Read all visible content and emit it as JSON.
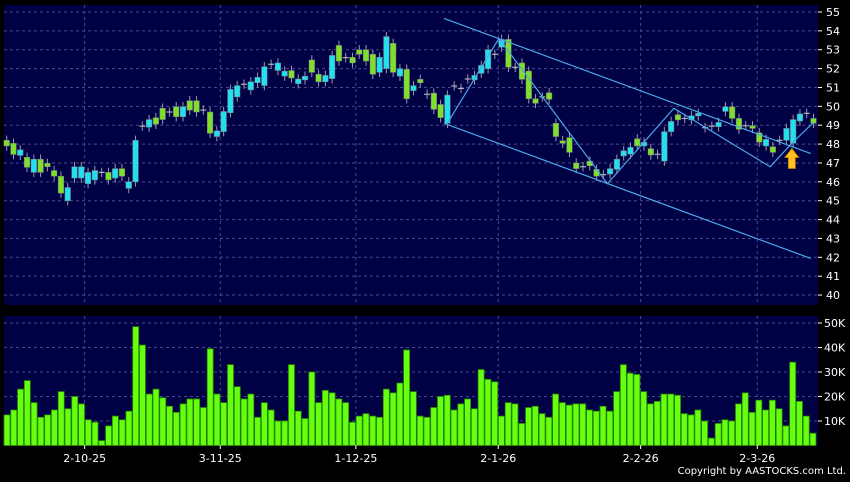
{
  "chart_data": [
    {
      "type": "candlestick",
      "ylim": [
        40,
        55
      ],
      "yticks": [
        40,
        41,
        42,
        43,
        44,
        45,
        46,
        47,
        48,
        49,
        50,
        51,
        52,
        53,
        54,
        55
      ],
      "grid": true,
      "colors": {
        "up": "#22e0ee",
        "down": "#7ee02a",
        "panel": "#000045",
        "trendline": "#4aa8e8",
        "arrow": "#ffc020"
      },
      "open": [
        48.2,
        48.04,
        47.4,
        47.3,
        46.5,
        47.2,
        46.98,
        46.6,
        46.3,
        45.0,
        46.2,
        46.2,
        45.9,
        46.1,
        46.5,
        46.5,
        46.2,
        46.7,
        45.65,
        46.0,
        48.95,
        48.9,
        49.4,
        49.9,
        49.7,
        49.98,
        49.45,
        50.3,
        50.3,
        49.8,
        49.7,
        48.4,
        48.66,
        49.66,
        50.5,
        51.17,
        50.87,
        51.25,
        51.1,
        52.23,
        51.9,
        51.6,
        51.9,
        51.2,
        51.4,
        52.46,
        51.7,
        51.3,
        51.47,
        53.23,
        52.58,
        52.6,
        53.0,
        53.0,
        52.76,
        51.8,
        52.0,
        53.34,
        51.6,
        51.96,
        50.83,
        51.43,
        50.64,
        50.7,
        50.1,
        49.1,
        51.08,
        50.95,
        51.45,
        51.4,
        51.75,
        52.0,
        52.76,
        53.13,
        53.55,
        52.07,
        52.3,
        51.87,
        50.4,
        50.5,
        50.72,
        49.1,
        48.18,
        48.34,
        47.0,
        46.8,
        47.1,
        46.66,
        46.38,
        46.41,
        46.66,
        47.37,
        47.47,
        48.28,
        47.9,
        47.76,
        47.46,
        47.1,
        48.66,
        49.56,
        49.36,
        49.28,
        49.49,
        48.87,
        48.95,
        48.92,
        49.73,
        49.98,
        49.36,
        48.97,
        48.97,
        48.6,
        47.9,
        47.86,
        48.2,
        48.2,
        48.04,
        49.22,
        49.63,
        49.36
      ],
      "close": [
        47.9,
        47.45,
        47.7,
        46.77,
        47.2,
        46.5,
        46.8,
        46.3,
        45.4,
        45.7,
        46.8,
        46.8,
        46.5,
        46.6,
        46.5,
        46.1,
        46.7,
        46.3,
        46.0,
        48.2,
        48.95,
        49.3,
        49.05,
        49.3,
        49.7,
        49.45,
        49.98,
        49.8,
        49.7,
        49.8,
        48.57,
        48.7,
        49.73,
        50.9,
        51.1,
        51.17,
        51.3,
        51.54,
        52.1,
        52.23,
        52.3,
        51.87,
        51.5,
        51.45,
        51.6,
        51.8,
        51.3,
        51.64,
        52.7,
        52.4,
        52.58,
        52.3,
        52.76,
        52.4,
        51.7,
        52.6,
        53.7,
        51.8,
        52.0,
        50.4,
        51.1,
        51.25,
        50.64,
        49.84,
        49.4,
        50.6,
        51.08,
        50.95,
        51.45,
        51.64,
        52.17,
        53.0,
        52.76,
        53.55,
        52.07,
        52.07,
        51.43,
        50.4,
        50.16,
        50.5,
        50.37,
        48.4,
        48.04,
        47.56,
        46.7,
        46.8,
        46.85,
        46.3,
        46.38,
        46.7,
        47.2,
        47.65,
        47.83,
        47.9,
        48.1,
        47.42,
        47.46,
        48.66,
        49.2,
        49.28,
        49.36,
        49.5,
        49.63,
        48.87,
        48.95,
        49.15,
        49.98,
        49.36,
        48.78,
        48.97,
        48.83,
        48.1,
        48.25,
        47.56,
        48.2,
        48.83,
        49.3,
        49.6,
        49.63,
        49.1
      ],
      "trendlines": [
        {
          "from": [
            64.5,
            54.66
          ],
          "to": [
            118.6,
            47.5
          ]
        },
        {
          "from": [
            64.5,
            49.1
          ],
          "to": [
            118.6,
            41.94
          ]
        }
      ],
      "zigzag": [
        [
          65,
          49.1
        ],
        [
          72.6,
          53.6
        ],
        [
          88.6,
          45.9
        ],
        [
          98.4,
          49.9
        ],
        [
          112.6,
          46.8
        ],
        [
          115.8,
          48.04
        ],
        [
          119,
          49.15
        ]
      ],
      "arrow_at": [
        115.8,
        47.5
      ]
    },
    {
      "type": "bar",
      "ylim": [
        0,
        50000
      ],
      "yticks": [
        "10K",
        "20K",
        "30K",
        "40K",
        "50K"
      ],
      "grid": true,
      "color": "#66ff11",
      "values": [
        12.5,
        14.5,
        23,
        26.5,
        17.5,
        11.5,
        12.5,
        14.5,
        22,
        15,
        20,
        17,
        10.5,
        9.5,
        2,
        8,
        12,
        10.5,
        14,
        48.5,
        41,
        21,
        23,
        19.5,
        16,
        13.5,
        17,
        19,
        19,
        15.5,
        39.5,
        21,
        17.5,
        33,
        24,
        19,
        21,
        11.5,
        17.5,
        14.5,
        10,
        10,
        33,
        14,
        11,
        30,
        17.5,
        22.5,
        21.5,
        19,
        17.5,
        9.5,
        12,
        13,
        12,
        11.5,
        23,
        21.5,
        25.5,
        39,
        22,
        12,
        11.5,
        15.5,
        20,
        20.5,
        14.5,
        17,
        19,
        15,
        31,
        27,
        26,
        12,
        17.5,
        17,
        9,
        15.5,
        16,
        13,
        11.5,
        21,
        17.5,
        16.5,
        17,
        17,
        14.5,
        14,
        16,
        14,
        22,
        33,
        29.5,
        29,
        22,
        17,
        18,
        21,
        21,
        20.5,
        13,
        12.5,
        14.5,
        10,
        3,
        9,
        10.5,
        10,
        17,
        21.5,
        13.5,
        18.5,
        14.5,
        18.5,
        15,
        8,
        34,
        18,
        12,
        5
      ],
      "values_unit": "thousands"
    }
  ],
  "x_axis": {
    "labels": [
      {
        "text": "2-10-25",
        "index": 11.5
      },
      {
        "text": "3-11-25",
        "index": 31.5
      },
      {
        "text": "1-12-25",
        "index": 51.5
      },
      {
        "text": "2-1-26",
        "index": 72.5
      },
      {
        "text": "2-2-26",
        "index": 93.5
      },
      {
        "text": "2-3-26",
        "index": 110.7
      }
    ]
  },
  "copyright": "Copyright by AASTOCKS.com Ltd."
}
